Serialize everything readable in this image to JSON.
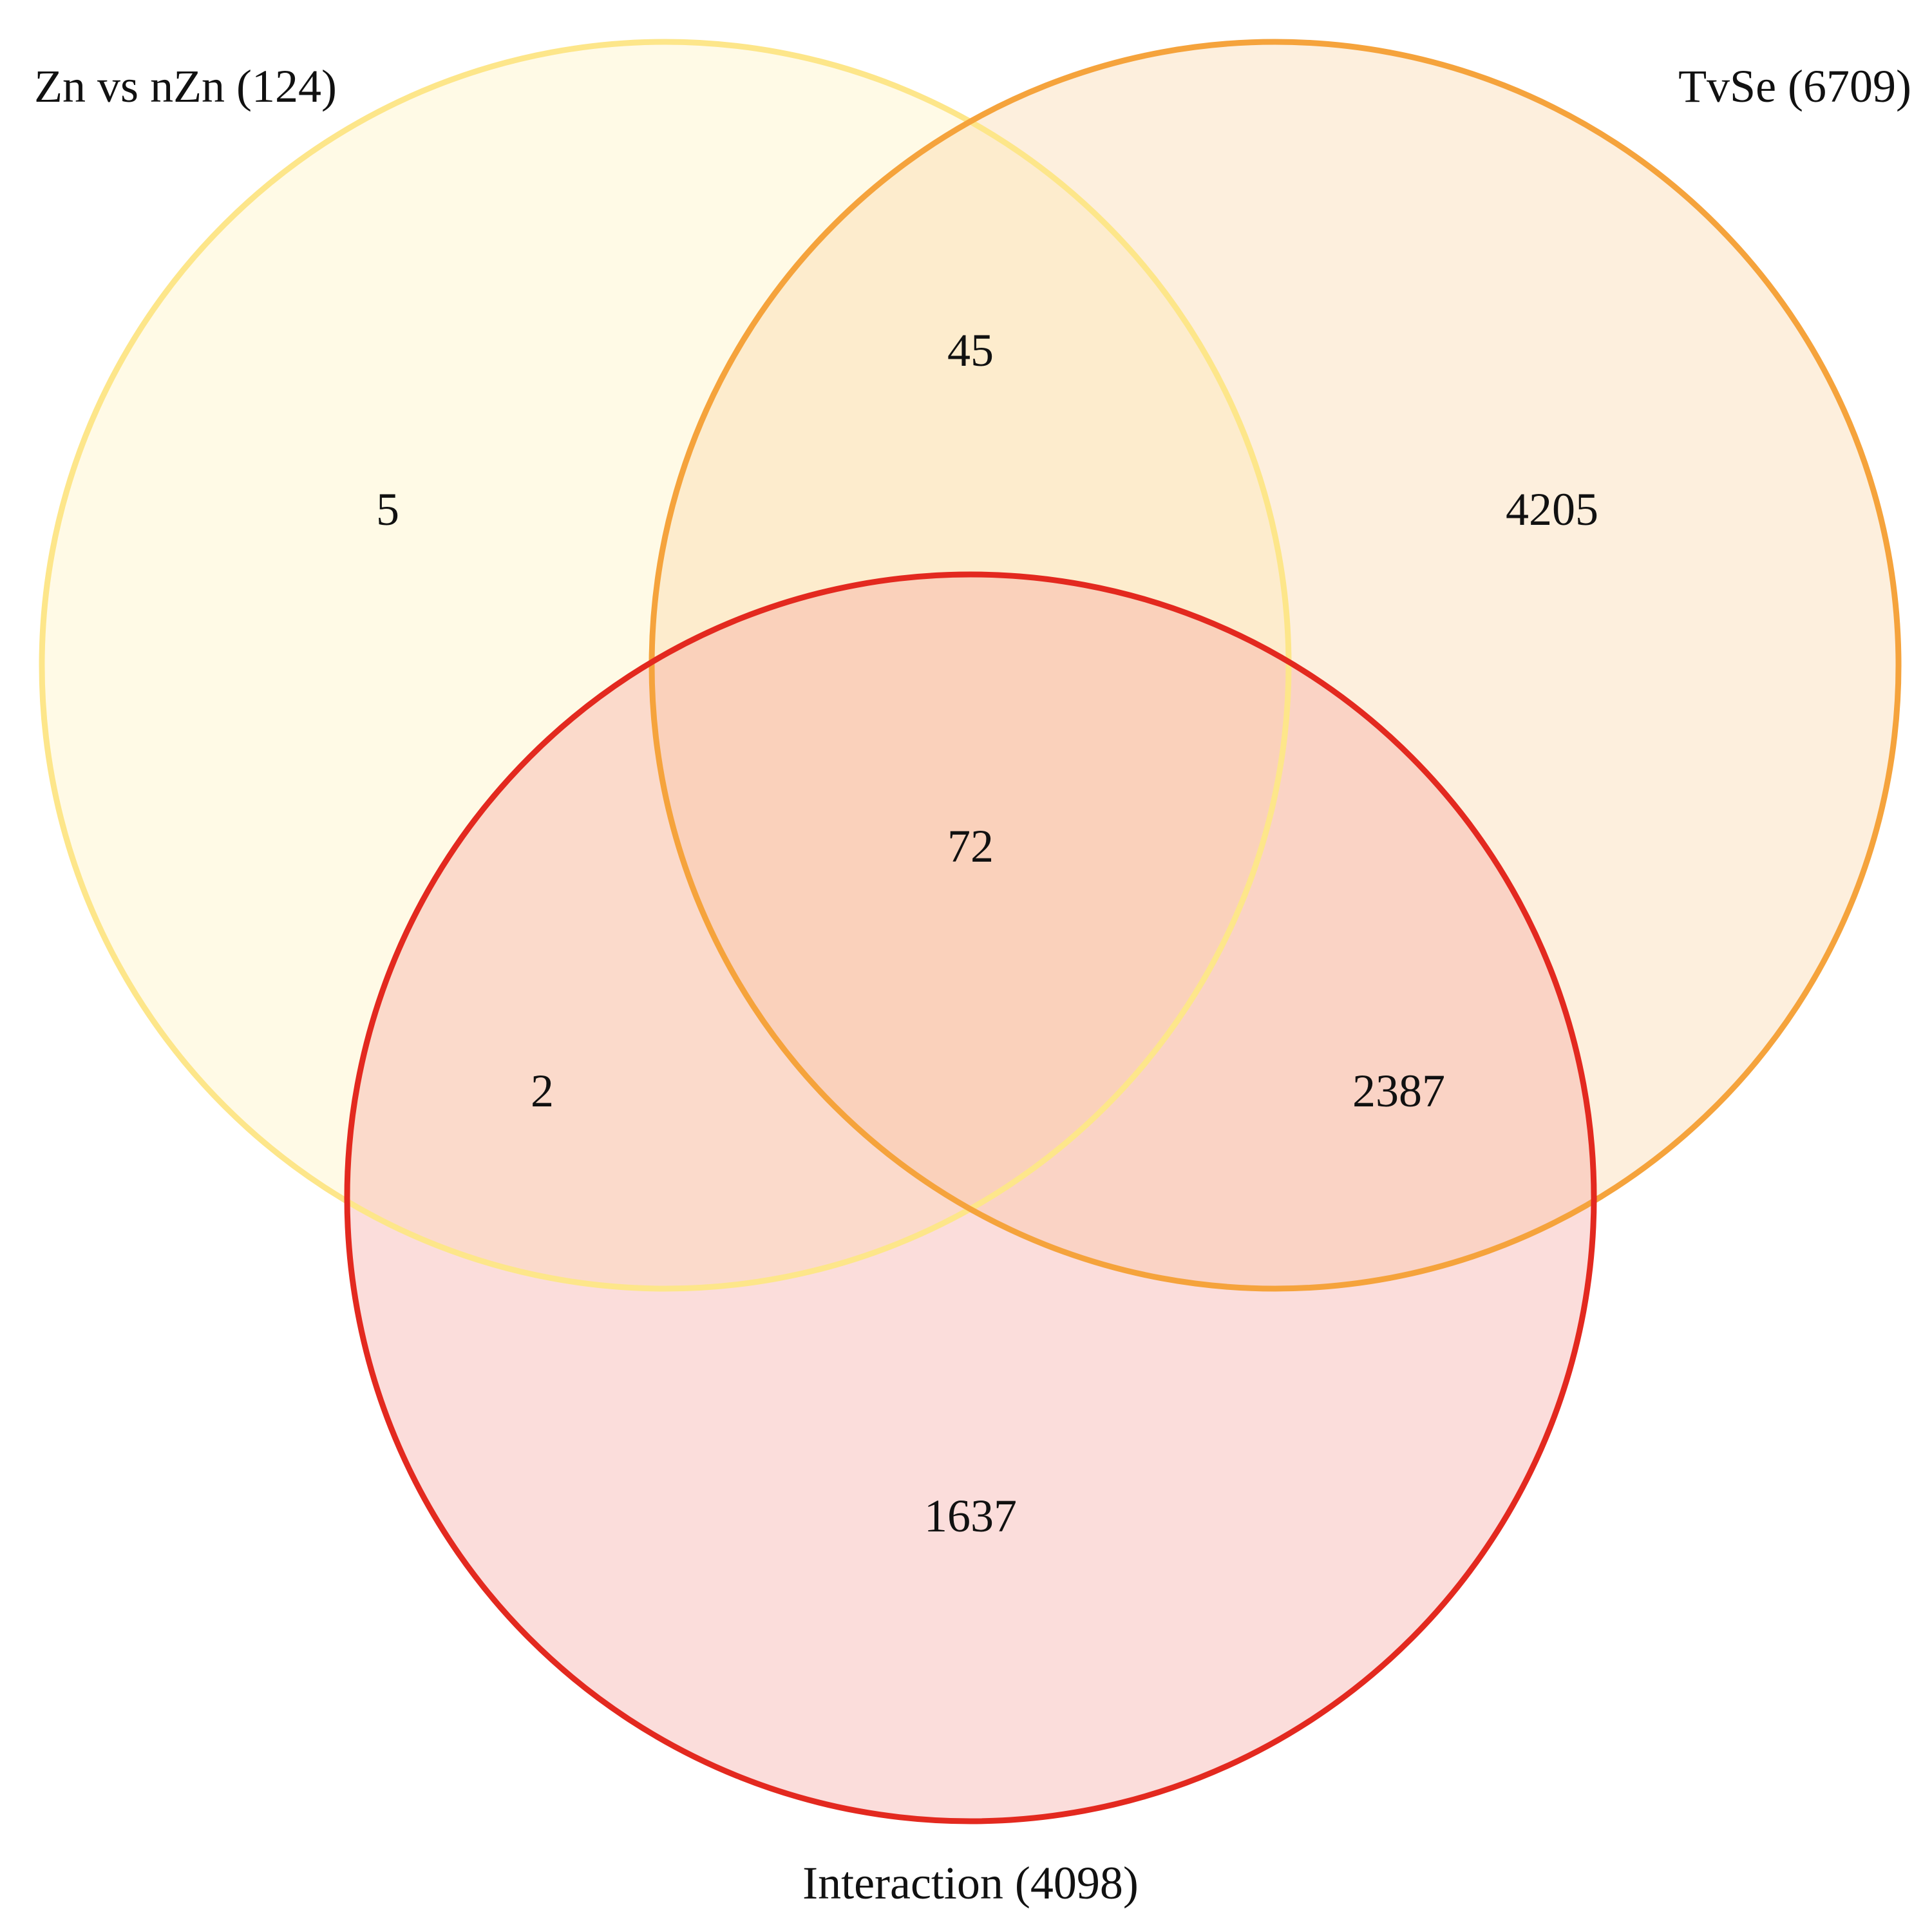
{
  "sets": [
    {
      "id": "zn",
      "label": "Zn vs nZn (124)",
      "stroke": "#FDE68A",
      "fill": "#FEF9E6"
    },
    {
      "id": "tvse",
      "label": "TvSe (6709)",
      "stroke": "#F5A33C",
      "fill": "#FDE9CF"
    },
    {
      "id": "inter",
      "label": "Interaction (4098)",
      "stroke": "#E3291F",
      "fill": "#F6B8B3"
    }
  ],
  "regions": {
    "zn_only": "5",
    "zn_tvse": "45",
    "tvse_only": "4205",
    "all_three": "72",
    "zn_inter": "2",
    "tvse_inter": "2387",
    "inter_only": "1637"
  }
}
